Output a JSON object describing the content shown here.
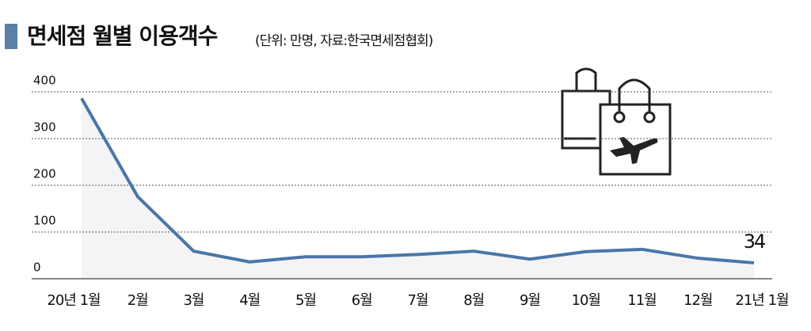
{
  "chart_data": {
    "type": "line",
    "title": "면세점 월별 이용객수",
    "subtitle": "(단위: 만명, 자료:한국면세점협회)",
    "categories": [
      "20년 1월",
      "2월",
      "3월",
      "4월",
      "5월",
      "6월",
      "7월",
      "8월",
      "9월",
      "10월",
      "11월",
      "12월",
      "21년 1월"
    ],
    "values": [
      386,
      176,
      59,
      36,
      47,
      47,
      52,
      59,
      42,
      58,
      63,
      44,
      34
    ],
    "color": "#4a76a8",
    "area": true,
    "ylim": [
      0,
      400
    ],
    "yticks": [
      0,
      100,
      200,
      300,
      400
    ],
    "grid": true,
    "labeled_points": [
      12
    ]
  }
}
